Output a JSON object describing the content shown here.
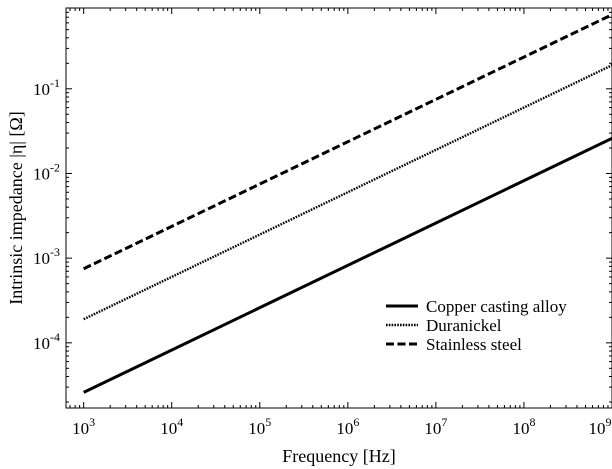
{
  "chart_data": {
    "type": "line",
    "xscale": "log",
    "yscale": "log",
    "xlabel": "Frequency [Hz]",
    "ylabel": "Intrinsic impedance |η| [Ω]",
    "xlim": [
      630,
      1000000000
    ],
    "ylim": [
      1.7e-05,
      0.9
    ],
    "x_ticks": [
      {
        "value": 1000,
        "base": "10",
        "exp": "3"
      },
      {
        "value": 10000,
        "base": "10",
        "exp": "4"
      },
      {
        "value": 100000,
        "base": "10",
        "exp": "5"
      },
      {
        "value": 1000000,
        "base": "10",
        "exp": "6"
      },
      {
        "value": 10000000,
        "base": "10",
        "exp": "7"
      },
      {
        "value": 100000000,
        "base": "10",
        "exp": "8"
      },
      {
        "value": 1000000000,
        "base": "10",
        "exp": "9"
      }
    ],
    "y_ticks": [
      {
        "value": 0.0001,
        "base": "10",
        "exp": "-4"
      },
      {
        "value": 0.001,
        "base": "10",
        "exp": "-3"
      },
      {
        "value": 0.01,
        "base": "10",
        "exp": "-2"
      },
      {
        "value": 0.1,
        "base": "10",
        "exp": "-1"
      }
    ],
    "x": [
      1000,
      1000000000
    ],
    "series": [
      {
        "name": "Copper casting alloy",
        "style": "solid",
        "values": [
          2.6e-05,
          0.026
        ]
      },
      {
        "name": "Duranickel",
        "style": "dotted",
        "values": [
          0.00019,
          0.19
        ]
      },
      {
        "name": "Stainless steel",
        "style": "dashed",
        "values": [
          0.00075,
          0.75
        ]
      }
    ],
    "legend_position": "lower-right",
    "grid": false
  }
}
